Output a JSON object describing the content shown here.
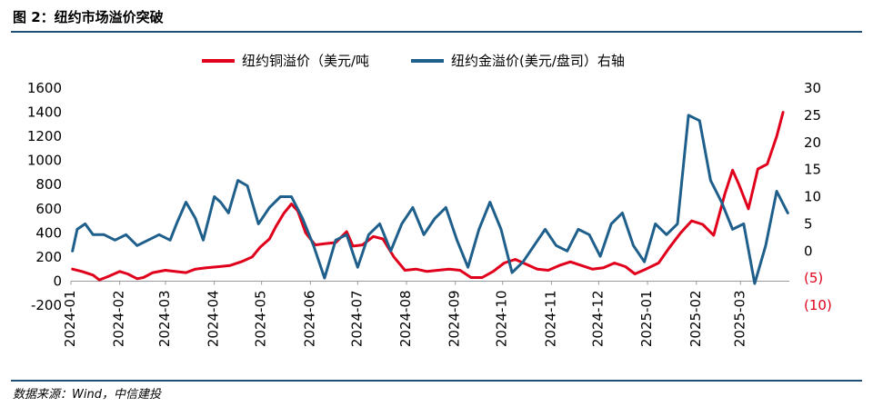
{
  "header": {
    "title": "图 2：纽约市场溢价突破"
  },
  "footer": {
    "source": "数据来源：Wind，中信建投"
  },
  "chart_data": {
    "type": "line",
    "x_type": "date",
    "categories": [
      "2024-01",
      "2024-02",
      "2024-03",
      "2024-04",
      "2024-05",
      "2024-06",
      "2024-07",
      "2024-08",
      "2024-09",
      "2024-10",
      "2024-11",
      "2024-12",
      "2025-01",
      "2025-02",
      "2025-03"
    ],
    "left_axis": {
      "min": -200,
      "max": 1600,
      "ticks": [
        "1600",
        "1400",
        "1200",
        "1000",
        "800",
        "600",
        "400",
        "200",
        "0",
        "-200"
      ]
    },
    "right_axis": {
      "min": -10,
      "max": 30,
      "ticks": [
        "30",
        "25",
        "20",
        "15",
        "10",
        "5",
        "0",
        "(5)",
        "(10)"
      ],
      "negative_color": "#e0001b"
    },
    "legend": {
      "position": "top-center"
    },
    "series": [
      {
        "name": "纽约铜溢价（美元/吨",
        "axis": "left",
        "color": "#e0001b",
        "points": [
          [
            "2024-01-02",
            100
          ],
          [
            "2024-01-08",
            80
          ],
          [
            "2024-01-15",
            50
          ],
          [
            "2024-01-19",
            10
          ],
          [
            "2024-01-25",
            40
          ],
          [
            "2024-02-01",
            80
          ],
          [
            "2024-02-06",
            60
          ],
          [
            "2024-02-12",
            20
          ],
          [
            "2024-02-16",
            30
          ],
          [
            "2024-02-22",
            70
          ],
          [
            "2024-03-01",
            90
          ],
          [
            "2024-03-07",
            80
          ],
          [
            "2024-03-14",
            70
          ],
          [
            "2024-03-20",
            100
          ],
          [
            "2024-03-27",
            110
          ],
          [
            "2024-04-04",
            120
          ],
          [
            "2024-04-11",
            130
          ],
          [
            "2024-04-18",
            160
          ],
          [
            "2024-04-25",
            200
          ],
          [
            "2024-04-30",
            280
          ],
          [
            "2024-05-06",
            350
          ],
          [
            "2024-05-10",
            450
          ],
          [
            "2024-05-15",
            560
          ],
          [
            "2024-05-20",
            640
          ],
          [
            "2024-05-24",
            580
          ],
          [
            "2024-05-29",
            400
          ],
          [
            "2024-06-04",
            300
          ],
          [
            "2024-06-10",
            310
          ],
          [
            "2024-06-17",
            320
          ],
          [
            "2024-06-24",
            410
          ],
          [
            "2024-06-28",
            290
          ],
          [
            "2024-07-04",
            300
          ],
          [
            "2024-07-11",
            370
          ],
          [
            "2024-07-17",
            350
          ],
          [
            "2024-07-24",
            200
          ],
          [
            "2024-07-31",
            90
          ],
          [
            "2024-08-07",
            100
          ],
          [
            "2024-08-14",
            80
          ],
          [
            "2024-08-21",
            90
          ],
          [
            "2024-08-28",
            100
          ],
          [
            "2024-09-04",
            90
          ],
          [
            "2024-09-11",
            30
          ],
          [
            "2024-09-18",
            30
          ],
          [
            "2024-09-25",
            80
          ],
          [
            "2024-10-02",
            150
          ],
          [
            "2024-10-09",
            180
          ],
          [
            "2024-10-16",
            140
          ],
          [
            "2024-10-23",
            100
          ],
          [
            "2024-10-30",
            90
          ],
          [
            "2024-11-06",
            130
          ],
          [
            "2024-11-13",
            160
          ],
          [
            "2024-11-20",
            130
          ],
          [
            "2024-11-27",
            100
          ],
          [
            "2024-12-04",
            110
          ],
          [
            "2024-12-11",
            150
          ],
          [
            "2024-12-18",
            120
          ],
          [
            "2024-12-24",
            60
          ],
          [
            "2024-12-31",
            100
          ],
          [
            "2025-01-08",
            150
          ],
          [
            "2025-01-15",
            280
          ],
          [
            "2025-01-22",
            400
          ],
          [
            "2025-01-29",
            500
          ],
          [
            "2025-02-05",
            470
          ],
          [
            "2025-02-12",
            380
          ],
          [
            "2025-02-19",
            720
          ],
          [
            "2025-02-24",
            920
          ],
          [
            "2025-02-28",
            800
          ],
          [
            "2025-03-06",
            600
          ],
          [
            "2025-03-12",
            930
          ],
          [
            "2025-03-18",
            970
          ],
          [
            "2025-03-24",
            1200
          ],
          [
            "2025-03-28",
            1400
          ]
        ]
      },
      {
        "name": "纽约金溢价(美元/盘司）右轴",
        "axis": "right",
        "color": "#1f5f8b",
        "points": [
          [
            "2024-01-02",
            0
          ],
          [
            "2024-01-05",
            4
          ],
          [
            "2024-01-10",
            5
          ],
          [
            "2024-01-15",
            3
          ],
          [
            "2024-01-22",
            3
          ],
          [
            "2024-01-29",
            2
          ],
          [
            "2024-02-05",
            3
          ],
          [
            "2024-02-12",
            1
          ],
          [
            "2024-02-19",
            2
          ],
          [
            "2024-02-26",
            3
          ],
          [
            "2024-03-04",
            2
          ],
          [
            "2024-03-08",
            5
          ],
          [
            "2024-03-14",
            9
          ],
          [
            "2024-03-20",
            6
          ],
          [
            "2024-03-25",
            2
          ],
          [
            "2024-04-01",
            10
          ],
          [
            "2024-04-05",
            9
          ],
          [
            "2024-04-10",
            7
          ],
          [
            "2024-04-16",
            13
          ],
          [
            "2024-04-22",
            12
          ],
          [
            "2024-04-29",
            5
          ],
          [
            "2024-05-06",
            8
          ],
          [
            "2024-05-13",
            10
          ],
          [
            "2024-05-20",
            10
          ],
          [
            "2024-05-27",
            6
          ],
          [
            "2024-06-03",
            1
          ],
          [
            "2024-06-10",
            -5
          ],
          [
            "2024-06-17",
            2
          ],
          [
            "2024-06-24",
            3
          ],
          [
            "2024-07-01",
            -3
          ],
          [
            "2024-07-08",
            3
          ],
          [
            "2024-07-15",
            5
          ],
          [
            "2024-07-22",
            0
          ],
          [
            "2024-07-29",
            5
          ],
          [
            "2024-08-05",
            8
          ],
          [
            "2024-08-12",
            3
          ],
          [
            "2024-08-19",
            6
          ],
          [
            "2024-08-26",
            8
          ],
          [
            "2024-09-02",
            2
          ],
          [
            "2024-09-09",
            -3
          ],
          [
            "2024-09-16",
            4
          ],
          [
            "2024-09-23",
            9
          ],
          [
            "2024-09-30",
            4
          ],
          [
            "2024-10-07",
            -4
          ],
          [
            "2024-10-14",
            -2
          ],
          [
            "2024-10-21",
            1
          ],
          [
            "2024-10-28",
            4
          ],
          [
            "2024-11-04",
            1
          ],
          [
            "2024-11-11",
            0
          ],
          [
            "2024-11-18",
            4
          ],
          [
            "2024-11-25",
            3
          ],
          [
            "2024-12-02",
            -1
          ],
          [
            "2024-12-09",
            5
          ],
          [
            "2024-12-16",
            7
          ],
          [
            "2024-12-23",
            1
          ],
          [
            "2024-12-30",
            -2
          ],
          [
            "2025-01-06",
            5
          ],
          [
            "2025-01-13",
            3
          ],
          [
            "2025-01-20",
            5
          ],
          [
            "2025-01-27",
            25
          ],
          [
            "2025-02-03",
            24
          ],
          [
            "2025-02-10",
            13
          ],
          [
            "2025-02-17",
            9
          ],
          [
            "2025-02-24",
            4
          ],
          [
            "2025-03-03",
            5
          ],
          [
            "2025-03-10",
            -6
          ],
          [
            "2025-03-17",
            1
          ],
          [
            "2025-03-24",
            11
          ],
          [
            "2025-03-31",
            7
          ]
        ]
      }
    ]
  }
}
